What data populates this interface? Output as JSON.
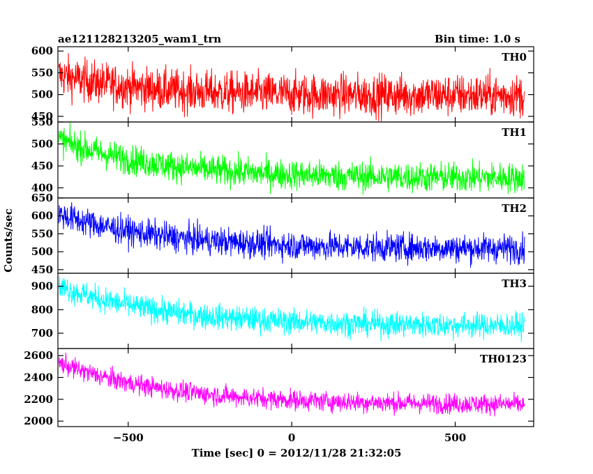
{
  "header": {
    "title": "ae121128213205_wam1_trn",
    "bin_time": "Bin time: 1.0 s"
  },
  "chart_data": {
    "type": "line",
    "xlabel": "Time [sec] 0 = 2012/11/28 21:32:05",
    "ylabel": "Counts/sec",
    "xlim": [
      -715,
      740
    ],
    "x_ticks": [
      "−500",
      "0",
      "500"
    ],
    "x_tick_values": [
      -500,
      0,
      500
    ],
    "data_x_range": [
      -712,
      712
    ],
    "grid": false,
    "panels": [
      {
        "name": "TH0",
        "color": "#ff0000",
        "ylim": [
          437,
          610
        ],
        "y_ticks": [
          "450",
          "500",
          "550",
          "600"
        ],
        "y_tick_values": [
          450,
          500,
          550,
          600
        ],
        "trend": {
          "start": 545,
          "end": 498,
          "tau": 250,
          "noise": 34
        }
      },
      {
        "name": "TH1",
        "color": "#00ff00",
        "ylim": [
          377,
          550
        ],
        "y_ticks": [
          "400",
          "450",
          "500",
          "550"
        ],
        "y_tick_values": [
          400,
          450,
          500,
          550
        ],
        "trend": {
          "start": 510,
          "end": 422,
          "tau": 300,
          "noise": 24
        }
      },
      {
        "name": "TH2",
        "color": "#0000ff",
        "ylim": [
          440,
          650
        ],
        "y_ticks": [
          "450",
          "500",
          "550",
          "600",
          "650"
        ],
        "y_tick_values": [
          450,
          500,
          550,
          600,
          650
        ],
        "trend": {
          "start": 605,
          "end": 508,
          "tau": 320,
          "noise": 28
        }
      },
      {
        "name": "TH3",
        "color": "#00ffff",
        "ylim": [
          635,
          955
        ],
        "y_ticks": [
          "700",
          "800",
          "900"
        ],
        "y_tick_values": [
          700,
          800,
          900
        ],
        "trend": {
          "start": 900,
          "end": 730,
          "tau": 330,
          "noise": 38
        }
      },
      {
        "name": "TH0123",
        "color": "#ff00ff",
        "ylim": [
          1950,
          2665
        ],
        "y_ticks": [
          "2000",
          "2200",
          "2400",
          "2600"
        ],
        "y_tick_values": [
          2000,
          2200,
          2400,
          2600
        ],
        "trend": {
          "start": 2535,
          "end": 2150,
          "tau": 330,
          "noise": 65
        }
      }
    ]
  }
}
